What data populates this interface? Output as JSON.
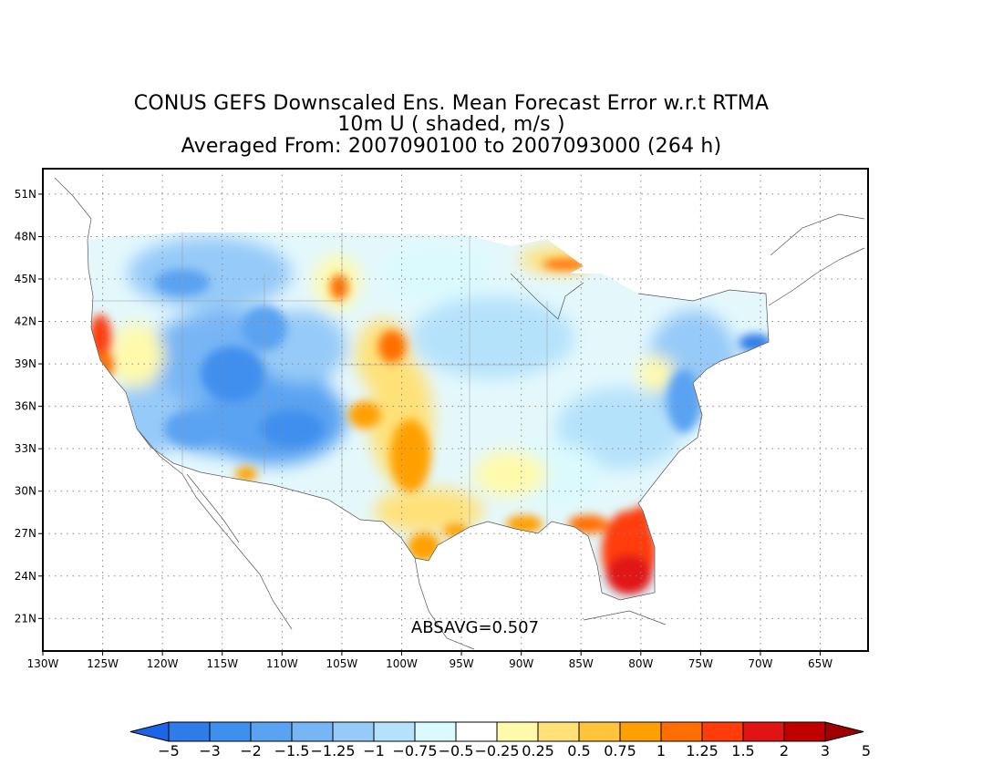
{
  "title": {
    "line1": "CONUS GEFS Downscaled Ens. Mean Forecast Error w.r.t RTMA",
    "line2": "10m U ( shaded, m/s )",
    "line3": "Averaged From: 2007090100 to 2007093000 (264 h)"
  },
  "annotation": "ABSAVG=0.507",
  "map": {
    "lat_labels": [
      "51N",
      "48N",
      "45N",
      "42N",
      "39N",
      "36N",
      "33N",
      "30N",
      "27N",
      "24N",
      "21N"
    ],
    "lat_values": [
      51,
      48,
      45,
      42,
      39,
      36,
      33,
      30,
      27,
      24,
      21
    ],
    "lon_labels": [
      "130W",
      "125W",
      "120W",
      "115W",
      "110W",
      "105W",
      "100W",
      "95W",
      "90W",
      "85W",
      "80W",
      "75W",
      "70W",
      "65W"
    ],
    "lon_values": [
      -130,
      -125,
      -120,
      -115,
      -110,
      -105,
      -100,
      -95,
      -90,
      -85,
      -80,
      -75,
      -70,
      -65
    ],
    "lat_range": [
      18.7,
      52.8
    ],
    "lon_range": [
      -130,
      -61
    ],
    "grid": true
  },
  "colorbar": {
    "labels": [
      "-5",
      "-3",
      "-2",
      "-1.5",
      "-1.25",
      "-1",
      "-0.75",
      "-0.5",
      "-0.25",
      "0.25",
      "0.5",
      "0.75",
      "1",
      "1.25",
      "1.5",
      "2",
      "3",
      "5"
    ],
    "colors": [
      "#1e64e6",
      "#2e7be9",
      "#3f8fee",
      "#5aa3f2",
      "#77b5f5",
      "#96caf8",
      "#b5e2fb",
      "#dafafe",
      "#ffffff",
      "#fffaaa",
      "#ffe178",
      "#ffc43c",
      "#ffa000",
      "#ff6e00",
      "#ff3c0a",
      "#e11414",
      "#c00000",
      "#a00000"
    ]
  },
  "chart_data": {
    "type": "heatmap",
    "variable": "10m U ( shaded, m/s )",
    "summary": "ABSAVG=0.507",
    "regions": [
      {
        "lat": 27.0,
        "lon": -81.2,
        "value": 3
      },
      {
        "lat": 25.3,
        "lon": -81.0,
        "value": 3
      },
      {
        "lat": 28.5,
        "lon": -80.7,
        "value": 2
      },
      {
        "lat": 29.6,
        "lon": -84.0,
        "value": 1.5
      },
      {
        "lat": 29.0,
        "lon": -89.7,
        "value": 1
      },
      {
        "lat": 28.8,
        "lon": -95.5,
        "value": 0.75
      },
      {
        "lat": 26.8,
        "lon": -97.4,
        "value": 1
      },
      {
        "lat": 32.5,
        "lon": -98.8,
        "value": 1
      },
      {
        "lat": 35.2,
        "lon": -99.3,
        "value": 0.75
      },
      {
        "lat": 41.0,
        "lon": -99.7,
        "value": 0.75
      },
      {
        "lat": 41.7,
        "lon": -124.5,
        "value": 1.25
      },
      {
        "lat": 39.6,
        "lon": -123.8,
        "value": 1
      },
      {
        "lat": 46.7,
        "lon": -86.0,
        "value": 0.75
      },
      {
        "lat": 44.8,
        "lon": -105.0,
        "value": 0.75
      },
      {
        "lat": 38.0,
        "lon": -113.5,
        "value": -1.5
      },
      {
        "lat": 40.0,
        "lon": -111.5,
        "value": -1.25
      },
      {
        "lat": 35.0,
        "lon": -112.5,
        "value": -1.5
      },
      {
        "lat": 44.0,
        "lon": -118.0,
        "value": -1.25
      },
      {
        "lat": 36.5,
        "lon": -108.0,
        "value": -1
      },
      {
        "lat": 41.7,
        "lon": -70.3,
        "value": -1.5
      },
      {
        "lat": 36.5,
        "lon": -76.8,
        "value": -1.25
      },
      {
        "lat": 33.5,
        "lon": -80.0,
        "value": -0.75
      },
      {
        "lat": 40.5,
        "lon": -93.0,
        "value": -0.5
      },
      {
        "lat": 33.5,
        "lon": -87.0,
        "value": -0.5
      },
      {
        "lat": 45.5,
        "lon": -93.5,
        "value": -0.25
      },
      {
        "lat": 37.0,
        "lon": -86.0,
        "value": -0.25
      }
    ]
  }
}
